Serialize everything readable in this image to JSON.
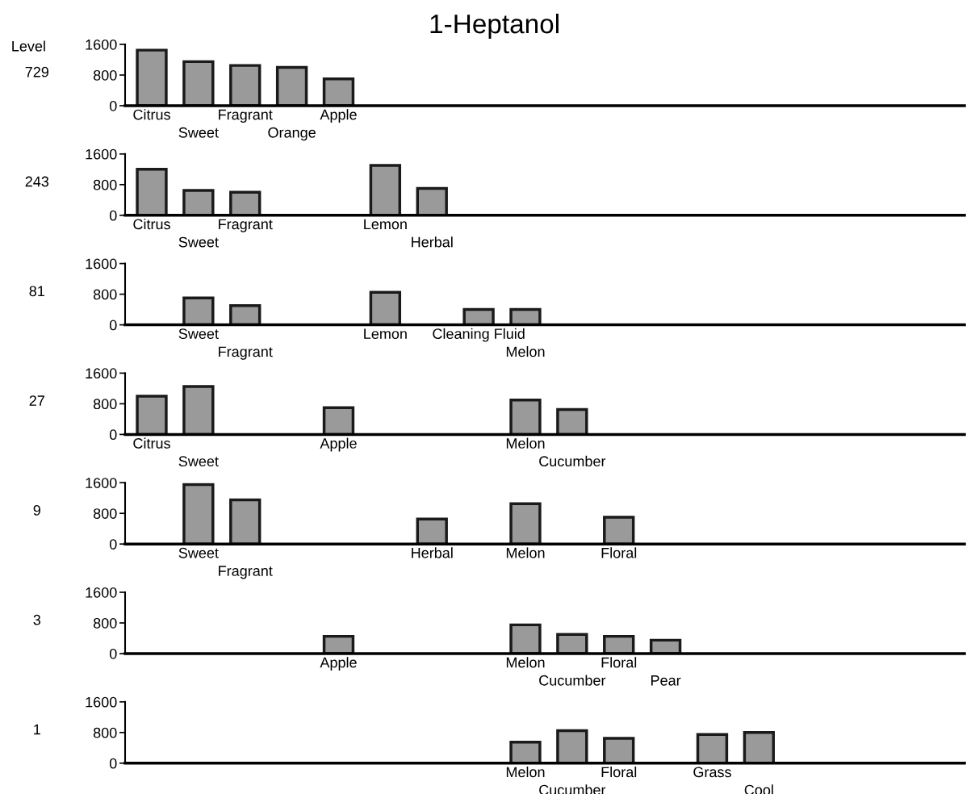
{
  "chart_data": [
    {
      "type": "bar",
      "title": "1-Heptanol",
      "ylabel": "729",
      "annotations": [
        "Level"
      ],
      "categories": [
        "Citrus",
        "Sweet",
        "Fragrant",
        "Orange",
        "Apple",
        null,
        null,
        null,
        null,
        null,
        null,
        null,
        null,
        null,
        null,
        null,
        null,
        null
      ],
      "values": [
        1450,
        1150,
        1050,
        1000,
        700,
        null,
        null,
        null,
        null,
        null,
        null,
        null,
        null,
        null,
        null,
        null,
        null,
        null
      ],
      "color": "#9a9a9a",
      "ylim": [
        0,
        1600
      ],
      "yticks": [
        0,
        800,
        1600
      ],
      "grid": false
    },
    {
      "type": "bar",
      "ylabel": "243",
      "categories": [
        "Citrus",
        "Sweet",
        "Fragrant",
        null,
        null,
        "Lemon",
        "Herbal",
        null,
        null,
        null,
        null,
        null,
        null,
        null,
        null,
        null,
        null,
        null
      ],
      "values": [
        1200,
        650,
        600,
        null,
        null,
        1300,
        700,
        null,
        null,
        null,
        null,
        null,
        null,
        null,
        null,
        null,
        null,
        null
      ],
      "color": "#9a9a9a",
      "ylim": [
        0,
        1600
      ],
      "yticks": [
        0,
        800,
        1600
      ],
      "grid": false
    },
    {
      "type": "bar",
      "ylabel": "81",
      "categories": [
        null,
        "Sweet",
        "Fragrant",
        null,
        null,
        "Lemon",
        null,
        "Cleaning Fluid",
        "Melon",
        null,
        null,
        null,
        null,
        null,
        null,
        null,
        null,
        null
      ],
      "values": [
        null,
        700,
        500,
        null,
        null,
        850,
        null,
        400,
        400,
        null,
        null,
        null,
        null,
        null,
        null,
        null,
        null,
        null
      ],
      "color": "#9a9a9a",
      "ylim": [
        0,
        1600
      ],
      "yticks": [
        0,
        800,
        1600
      ],
      "grid": false
    },
    {
      "type": "bar",
      "ylabel": "27",
      "categories": [
        "Citrus",
        "Sweet",
        null,
        null,
        "Apple",
        null,
        null,
        null,
        "Melon",
        "Cucumber",
        null,
        null,
        null,
        null,
        null,
        null,
        null,
        null
      ],
      "values": [
        1000,
        1250,
        null,
        null,
        700,
        null,
        null,
        null,
        900,
        650,
        null,
        null,
        null,
        null,
        null,
        null,
        null,
        null
      ],
      "color": "#9a9a9a",
      "ylim": [
        0,
        1600
      ],
      "yticks": [
        0,
        800,
        1600
      ],
      "grid": false
    },
    {
      "type": "bar",
      "ylabel": "9",
      "categories": [
        null,
        "Sweet",
        "Fragrant",
        null,
        null,
        null,
        "Herbal",
        null,
        "Melon",
        null,
        "Floral",
        null,
        null,
        null,
        null,
        null,
        null,
        null
      ],
      "values": [
        null,
        1550,
        1150,
        null,
        null,
        null,
        650,
        null,
        1050,
        null,
        700,
        null,
        null,
        null,
        null,
        null,
        null,
        null
      ],
      "color": "#9a9a9a",
      "ylim": [
        0,
        1600
      ],
      "yticks": [
        0,
        800,
        1600
      ],
      "grid": false
    },
    {
      "type": "bar",
      "ylabel": "3",
      "categories": [
        null,
        null,
        null,
        null,
        "Apple",
        null,
        null,
        null,
        "Melon",
        "Cucumber",
        "Floral",
        "Pear",
        null,
        null,
        null,
        null,
        null,
        null
      ],
      "values": [
        null,
        null,
        null,
        null,
        450,
        null,
        null,
        null,
        750,
        500,
        450,
        350,
        null,
        null,
        null,
        null,
        null,
        null
      ],
      "color": "#9a9a9a",
      "ylim": [
        0,
        1600
      ],
      "yticks": [
        0,
        800,
        1600
      ],
      "grid": false
    },
    {
      "type": "bar",
      "ylabel": "1",
      "categories": [
        null,
        null,
        null,
        null,
        null,
        null,
        null,
        null,
        "Melon",
        "Cucumber",
        "Floral",
        null,
        "Grass",
        "Cool",
        null,
        null,
        null,
        null
      ],
      "values": [
        null,
        null,
        null,
        null,
        null,
        null,
        null,
        null,
        550,
        850,
        650,
        null,
        750,
        800,
        null,
        null,
        null,
        null
      ],
      "color": "#9a9a9a",
      "ylim": [
        0,
        1600
      ],
      "yticks": [
        0,
        800,
        1600
      ],
      "grid": false
    }
  ]
}
